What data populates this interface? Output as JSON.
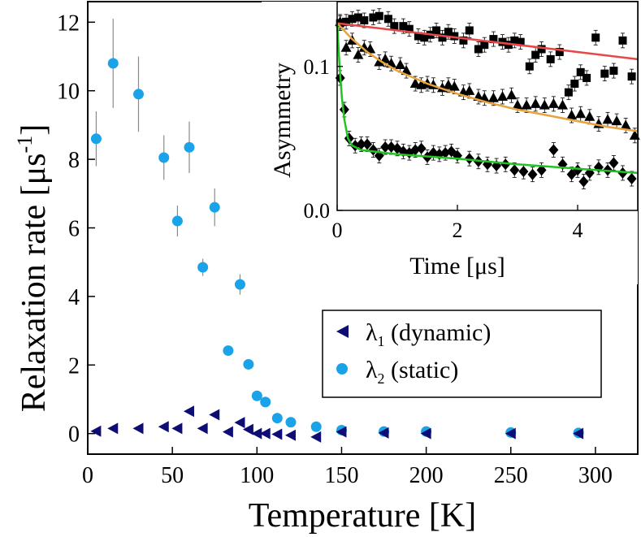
{
  "chart_data": [
    {
      "type": "scatter",
      "xlabel": "Temperature [K]",
      "ylabel": "Relaxation rate [μs",
      "ylabel_sup": "-1",
      "ylabel_end": "]",
      "xlim": [
        0,
        325
      ],
      "ylim": [
        -0.6,
        12.6
      ],
      "x_ticks": [
        0,
        50,
        100,
        150,
        200,
        250,
        300
      ],
      "y_ticks": [
        0,
        2,
        4,
        6,
        8,
        10,
        12
      ],
      "legend_position": "inside-lower-right",
      "series": [
        {
          "symbol": "λ",
          "subscript": "1",
          "name_rest": " (dynamic)",
          "marker": "left-triangle",
          "color": "#0d0d73",
          "points": [
            {
              "x": 5,
              "y": 0.07
            },
            {
              "x": 15,
              "y": 0.15
            },
            {
              "x": 30,
              "y": 0.15
            },
            {
              "x": 45,
              "y": 0.2
            },
            {
              "x": 53,
              "y": 0.15
            },
            {
              "x": 60,
              "y": 0.65
            },
            {
              "x": 68,
              "y": 0.15
            },
            {
              "x": 75,
              "y": 0.55
            },
            {
              "x": 83,
              "y": 0.05
            },
            {
              "x": 90,
              "y": 0.32
            },
            {
              "x": 95,
              "y": 0.12
            },
            {
              "x": 100,
              "y": 0.0
            },
            {
              "x": 105,
              "y": 0.0
            },
            {
              "x": 112,
              "y": -0.02
            },
            {
              "x": 120,
              "y": -0.05
            },
            {
              "x": 135,
              "y": -0.1
            },
            {
              "x": 150,
              "y": 0.05
            },
            {
              "x": 175,
              "y": 0.02
            },
            {
              "x": 200,
              "y": 0.0
            },
            {
              "x": 250,
              "y": 0.0
            },
            {
              "x": 290,
              "y": 0.0
            }
          ]
        },
        {
          "symbol": "λ",
          "subscript": "2",
          "name_rest": " (static)",
          "marker": "circle",
          "color": "#1aa3e8",
          "points": [
            {
              "x": 5,
              "y": 8.6,
              "err": 0.8
            },
            {
              "x": 15,
              "y": 10.8,
              "err": 1.3
            },
            {
              "x": 30,
              "y": 9.9,
              "err": 1.1
            },
            {
              "x": 45,
              "y": 8.05,
              "err": 0.65
            },
            {
              "x": 53,
              "y": 6.2,
              "err": 0.45
            },
            {
              "x": 60,
              "y": 8.35,
              "err": 0.75
            },
            {
              "x": 68,
              "y": 4.85,
              "err": 0.25
            },
            {
              "x": 75,
              "y": 6.6,
              "err": 0.55
            },
            {
              "x": 83,
              "y": 2.42,
              "err": 0.1
            },
            {
              "x": 90,
              "y": 4.35,
              "err": 0.3
            },
            {
              "x": 95,
              "y": 2.02,
              "err": 0.1
            },
            {
              "x": 100,
              "y": 1.1,
              "err": 0.1
            },
            {
              "x": 105,
              "y": 0.92,
              "err": 0.1
            },
            {
              "x": 112,
              "y": 0.45,
              "err": 0.08
            },
            {
              "x": 120,
              "y": 0.33,
              "err": 0.08
            },
            {
              "x": 135,
              "y": 0.2,
              "err": 0.05
            },
            {
              "x": 150,
              "y": 0.1,
              "err": 0.05
            },
            {
              "x": 175,
              "y": 0.06,
              "err": 0.05
            },
            {
              "x": 200,
              "y": 0.06,
              "err": 0.05
            },
            {
              "x": 250,
              "y": 0.03,
              "err": 0.03
            },
            {
              "x": 290,
              "y": 0.02,
              "err": 0.03
            }
          ]
        }
      ]
    },
    {
      "type": "scatter",
      "inset": true,
      "xlabel": "Time [μs]",
      "ylabel": "Asymmetry",
      "xlim": [
        0,
        5
      ],
      "ylim": [
        0,
        0.145
      ],
      "x_ticks": [
        0,
        2,
        4
      ],
      "y_ticks": [
        0.0,
        0.1
      ],
      "y_tick_labels": [
        "0.0",
        "0.1"
      ],
      "series": [
        {
          "marker": "square",
          "color": "#000000",
          "fit_color": "#e8474a",
          "points": [
            {
              "x": 0.05,
              "y": 0.13
            },
            {
              "x": 0.15,
              "y": 0.131
            },
            {
              "x": 0.25,
              "y": 0.133
            },
            {
              "x": 0.35,
              "y": 0.134
            },
            {
              "x": 0.45,
              "y": 0.132
            },
            {
              "x": 0.6,
              "y": 0.134
            },
            {
              "x": 0.7,
              "y": 0.135
            },
            {
              "x": 0.85,
              "y": 0.133
            },
            {
              "x": 0.95,
              "y": 0.128
            },
            {
              "x": 1.1,
              "y": 0.128
            },
            {
              "x": 1.2,
              "y": 0.126
            },
            {
              "x": 1.35,
              "y": 0.121
            },
            {
              "x": 1.45,
              "y": 0.12
            },
            {
              "x": 1.55,
              "y": 0.122
            },
            {
              "x": 1.65,
              "y": 0.125
            },
            {
              "x": 1.75,
              "y": 0.12
            },
            {
              "x": 1.85,
              "y": 0.124
            },
            {
              "x": 1.95,
              "y": 0.121
            },
            {
              "x": 2.1,
              "y": 0.118
            },
            {
              "x": 2.2,
              "y": 0.125
            },
            {
              "x": 2.35,
              "y": 0.112
            },
            {
              "x": 2.45,
              "y": 0.115
            },
            {
              "x": 2.6,
              "y": 0.119
            },
            {
              "x": 2.75,
              "y": 0.117
            },
            {
              "x": 2.85,
              "y": 0.115
            },
            {
              "x": 2.95,
              "y": 0.118
            },
            {
              "x": 3.05,
              "y": 0.117
            },
            {
              "x": 3.2,
              "y": 0.1
            },
            {
              "x": 3.3,
              "y": 0.108
            },
            {
              "x": 3.4,
              "y": 0.112
            },
            {
              "x": 3.55,
              "y": 0.105
            },
            {
              "x": 3.7,
              "y": 0.11
            },
            {
              "x": 3.85,
              "y": 0.082
            },
            {
              "x": 3.95,
              "y": 0.088
            },
            {
              "x": 4.05,
              "y": 0.096
            },
            {
              "x": 4.15,
              "y": 0.092
            },
            {
              "x": 4.3,
              "y": 0.12
            },
            {
              "x": 4.45,
              "y": 0.095
            },
            {
              "x": 4.6,
              "y": 0.097
            },
            {
              "x": 4.75,
              "y": 0.118
            },
            {
              "x": 4.9,
              "y": 0.093
            }
          ],
          "fit": [
            {
              "x": 0,
              "y": 0.13
            },
            {
              "x": 5,
              "y": 0.105
            }
          ]
        },
        {
          "marker": "triangle-up",
          "color": "#000000",
          "fit_color": "#e8a33a",
          "points": [
            {
              "x": 0.05,
              "y": 0.131
            },
            {
              "x": 0.15,
              "y": 0.113
            },
            {
              "x": 0.25,
              "y": 0.118
            },
            {
              "x": 0.35,
              "y": 0.108
            },
            {
              "x": 0.45,
              "y": 0.113
            },
            {
              "x": 0.55,
              "y": 0.112
            },
            {
              "x": 0.7,
              "y": 0.103
            },
            {
              "x": 0.8,
              "y": 0.105
            },
            {
              "x": 0.9,
              "y": 0.102
            },
            {
              "x": 1.05,
              "y": 0.101
            },
            {
              "x": 1.15,
              "y": 0.097
            },
            {
              "x": 1.3,
              "y": 0.088
            },
            {
              "x": 1.4,
              "y": 0.087
            },
            {
              "x": 1.5,
              "y": 0.088
            },
            {
              "x": 1.6,
              "y": 0.087
            },
            {
              "x": 1.75,
              "y": 0.085
            },
            {
              "x": 1.85,
              "y": 0.087
            },
            {
              "x": 1.95,
              "y": 0.086
            },
            {
              "x": 2.1,
              "y": 0.082
            },
            {
              "x": 2.2,
              "y": 0.083
            },
            {
              "x": 2.35,
              "y": 0.079
            },
            {
              "x": 2.45,
              "y": 0.078
            },
            {
              "x": 2.6,
              "y": 0.078
            },
            {
              "x": 2.75,
              "y": 0.079
            },
            {
              "x": 2.9,
              "y": 0.08
            },
            {
              "x": 3.0,
              "y": 0.073
            },
            {
              "x": 3.15,
              "y": 0.073
            },
            {
              "x": 3.3,
              "y": 0.074
            },
            {
              "x": 3.45,
              "y": 0.073
            },
            {
              "x": 3.6,
              "y": 0.074
            },
            {
              "x": 3.75,
              "y": 0.073
            },
            {
              "x": 3.9,
              "y": 0.066
            },
            {
              "x": 4.05,
              "y": 0.067
            },
            {
              "x": 4.2,
              "y": 0.065
            },
            {
              "x": 4.35,
              "y": 0.06
            },
            {
              "x": 4.5,
              "y": 0.063
            },
            {
              "x": 4.65,
              "y": 0.062
            },
            {
              "x": 4.8,
              "y": 0.059
            },
            {
              "x": 4.95,
              "y": 0.052
            }
          ],
          "fit": [
            {
              "x": 0,
              "y": 0.13
            },
            {
              "x": 0.25,
              "y": 0.119
            },
            {
              "x": 0.5,
              "y": 0.11
            },
            {
              "x": 0.75,
              "y": 0.103
            },
            {
              "x": 1.0,
              "y": 0.097
            },
            {
              "x": 1.5,
              "y": 0.088
            },
            {
              "x": 2.0,
              "y": 0.081
            },
            {
              "x": 2.5,
              "y": 0.075
            },
            {
              "x": 3.0,
              "y": 0.07
            },
            {
              "x": 3.5,
              "y": 0.066
            },
            {
              "x": 4.0,
              "y": 0.062
            },
            {
              "x": 4.5,
              "y": 0.058
            },
            {
              "x": 5.0,
              "y": 0.055
            }
          ]
        },
        {
          "marker": "diamond",
          "color": "#000000",
          "fit_color": "#22c322",
          "points": [
            {
              "x": 0.05,
              "y": 0.092
            },
            {
              "x": 0.12,
              "y": 0.07
            },
            {
              "x": 0.2,
              "y": 0.05
            },
            {
              "x": 0.3,
              "y": 0.045
            },
            {
              "x": 0.4,
              "y": 0.046
            },
            {
              "x": 0.5,
              "y": 0.046
            },
            {
              "x": 0.6,
              "y": 0.042
            },
            {
              "x": 0.7,
              "y": 0.038
            },
            {
              "x": 0.8,
              "y": 0.044
            },
            {
              "x": 0.9,
              "y": 0.044
            },
            {
              "x": 1.0,
              "y": 0.043
            },
            {
              "x": 1.1,
              "y": 0.041
            },
            {
              "x": 1.2,
              "y": 0.04
            },
            {
              "x": 1.3,
              "y": 0.042
            },
            {
              "x": 1.4,
              "y": 0.043
            },
            {
              "x": 1.5,
              "y": 0.037
            },
            {
              "x": 1.6,
              "y": 0.04
            },
            {
              "x": 1.7,
              "y": 0.039
            },
            {
              "x": 1.8,
              "y": 0.04
            },
            {
              "x": 1.9,
              "y": 0.041
            },
            {
              "x": 2.0,
              "y": 0.038
            },
            {
              "x": 2.2,
              "y": 0.036
            },
            {
              "x": 2.35,
              "y": 0.034
            },
            {
              "x": 2.5,
              "y": 0.032
            },
            {
              "x": 2.65,
              "y": 0.031
            },
            {
              "x": 2.8,
              "y": 0.032
            },
            {
              "x": 2.95,
              "y": 0.028
            },
            {
              "x": 3.1,
              "y": 0.027
            },
            {
              "x": 3.25,
              "y": 0.025
            },
            {
              "x": 3.4,
              "y": 0.028
            },
            {
              "x": 3.6,
              "y": 0.042
            },
            {
              "x": 3.75,
              "y": 0.032
            },
            {
              "x": 3.9,
              "y": 0.025
            },
            {
              "x": 4.0,
              "y": 0.028
            },
            {
              "x": 4.1,
              "y": 0.02
            },
            {
              "x": 4.2,
              "y": 0.026
            },
            {
              "x": 4.35,
              "y": 0.03
            },
            {
              "x": 4.5,
              "y": 0.028
            },
            {
              "x": 4.6,
              "y": 0.033
            },
            {
              "x": 4.75,
              "y": 0.026
            },
            {
              "x": 4.9,
              "y": 0.022
            }
          ],
          "fit": [
            {
              "x": 0,
              "y": 0.13
            },
            {
              "x": 0.04,
              "y": 0.1
            },
            {
              "x": 0.08,
              "y": 0.078
            },
            {
              "x": 0.12,
              "y": 0.063
            },
            {
              "x": 0.18,
              "y": 0.05
            },
            {
              "x": 0.25,
              "y": 0.045
            },
            {
              "x": 0.4,
              "y": 0.042
            },
            {
              "x": 1.0,
              "y": 0.039
            },
            {
              "x": 2.0,
              "y": 0.036
            },
            {
              "x": 3.0,
              "y": 0.032
            },
            {
              "x": 4.0,
              "y": 0.029
            },
            {
              "x": 5.0,
              "y": 0.026
            }
          ]
        }
      ]
    }
  ]
}
